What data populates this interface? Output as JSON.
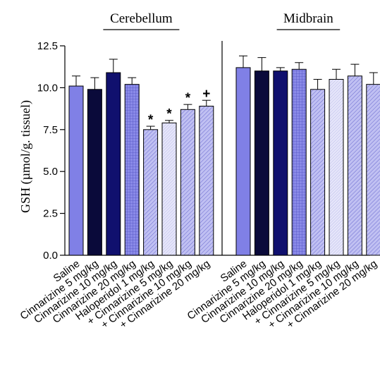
{
  "chart_data": {
    "type": "bar",
    "ylabel": "GSH (µmol/g. tissuel)",
    "ylim": [
      0,
      12.5
    ],
    "yticks": [
      0.0,
      2.5,
      5.0,
      7.5,
      10.0,
      12.5
    ],
    "ytick_labels": [
      "0.0",
      "2.5",
      "5.0",
      "7.5",
      "10.0",
      "12.5"
    ],
    "grid": false,
    "groups": [
      {
        "name": "Cerebellum",
        "categories": [
          "Saline",
          "Cinnarizine 5 mg/kg",
          "Cinnarizine 10 mg/kg",
          "Cinnarizine 20 mg/kg",
          "Haloperidol 1 mg/kg",
          "+ Cinnarizine 5 mg/kg",
          "+ Cinnarizine 10 mg/kg",
          "+ Cinnarizine 20 mg/kg"
        ],
        "values": [
          10.1,
          9.9,
          10.9,
          10.2,
          7.5,
          7.9,
          8.7,
          8.9
        ],
        "errors": [
          0.6,
          0.7,
          0.8,
          0.4,
          0.2,
          0.15,
          0.3,
          0.35
        ],
        "markers": [
          "",
          "",
          "",
          "",
          "*",
          "*",
          "*",
          "+"
        ]
      },
      {
        "name": "Midbrain",
        "categories": [
          "Saline",
          "Cinnarizine 5 mg/kg",
          "Cinnarizine 10 mg/kg",
          "Cinnarizine 20 mg/kg",
          "Haloperidol 1 mg/kg",
          "+ Cinnarizine 5 mg/kg",
          "+ Cinnarizine 10 mg/kg",
          "+ Cinnarizine 20 mg/kg"
        ],
        "values": [
          11.2,
          11.0,
          11.0,
          11.1,
          9.9,
          10.5,
          10.7,
          10.2
        ],
        "errors": [
          0.7,
          0.8,
          0.2,
          0.4,
          0.6,
          0.6,
          0.7,
          0.7
        ],
        "markers": [
          "",
          "",
          "",
          "",
          "",
          "",
          "",
          ""
        ]
      }
    ],
    "bar_styles": [
      {
        "fill": "#8080e6",
        "pattern": "none"
      },
      {
        "fill": "#0a0a3a",
        "pattern": "none"
      },
      {
        "fill": "#10106e",
        "pattern": "none"
      },
      {
        "fill": "#8a8ae8",
        "pattern": "grid"
      },
      {
        "fill": "#b8b8f0",
        "pattern": "diag"
      },
      {
        "fill": "#e0e0f8",
        "pattern": "fine"
      },
      {
        "fill": "#a0a0ea",
        "pattern": "diag"
      },
      {
        "fill": "#b0b0ee",
        "pattern": "diag"
      }
    ]
  }
}
